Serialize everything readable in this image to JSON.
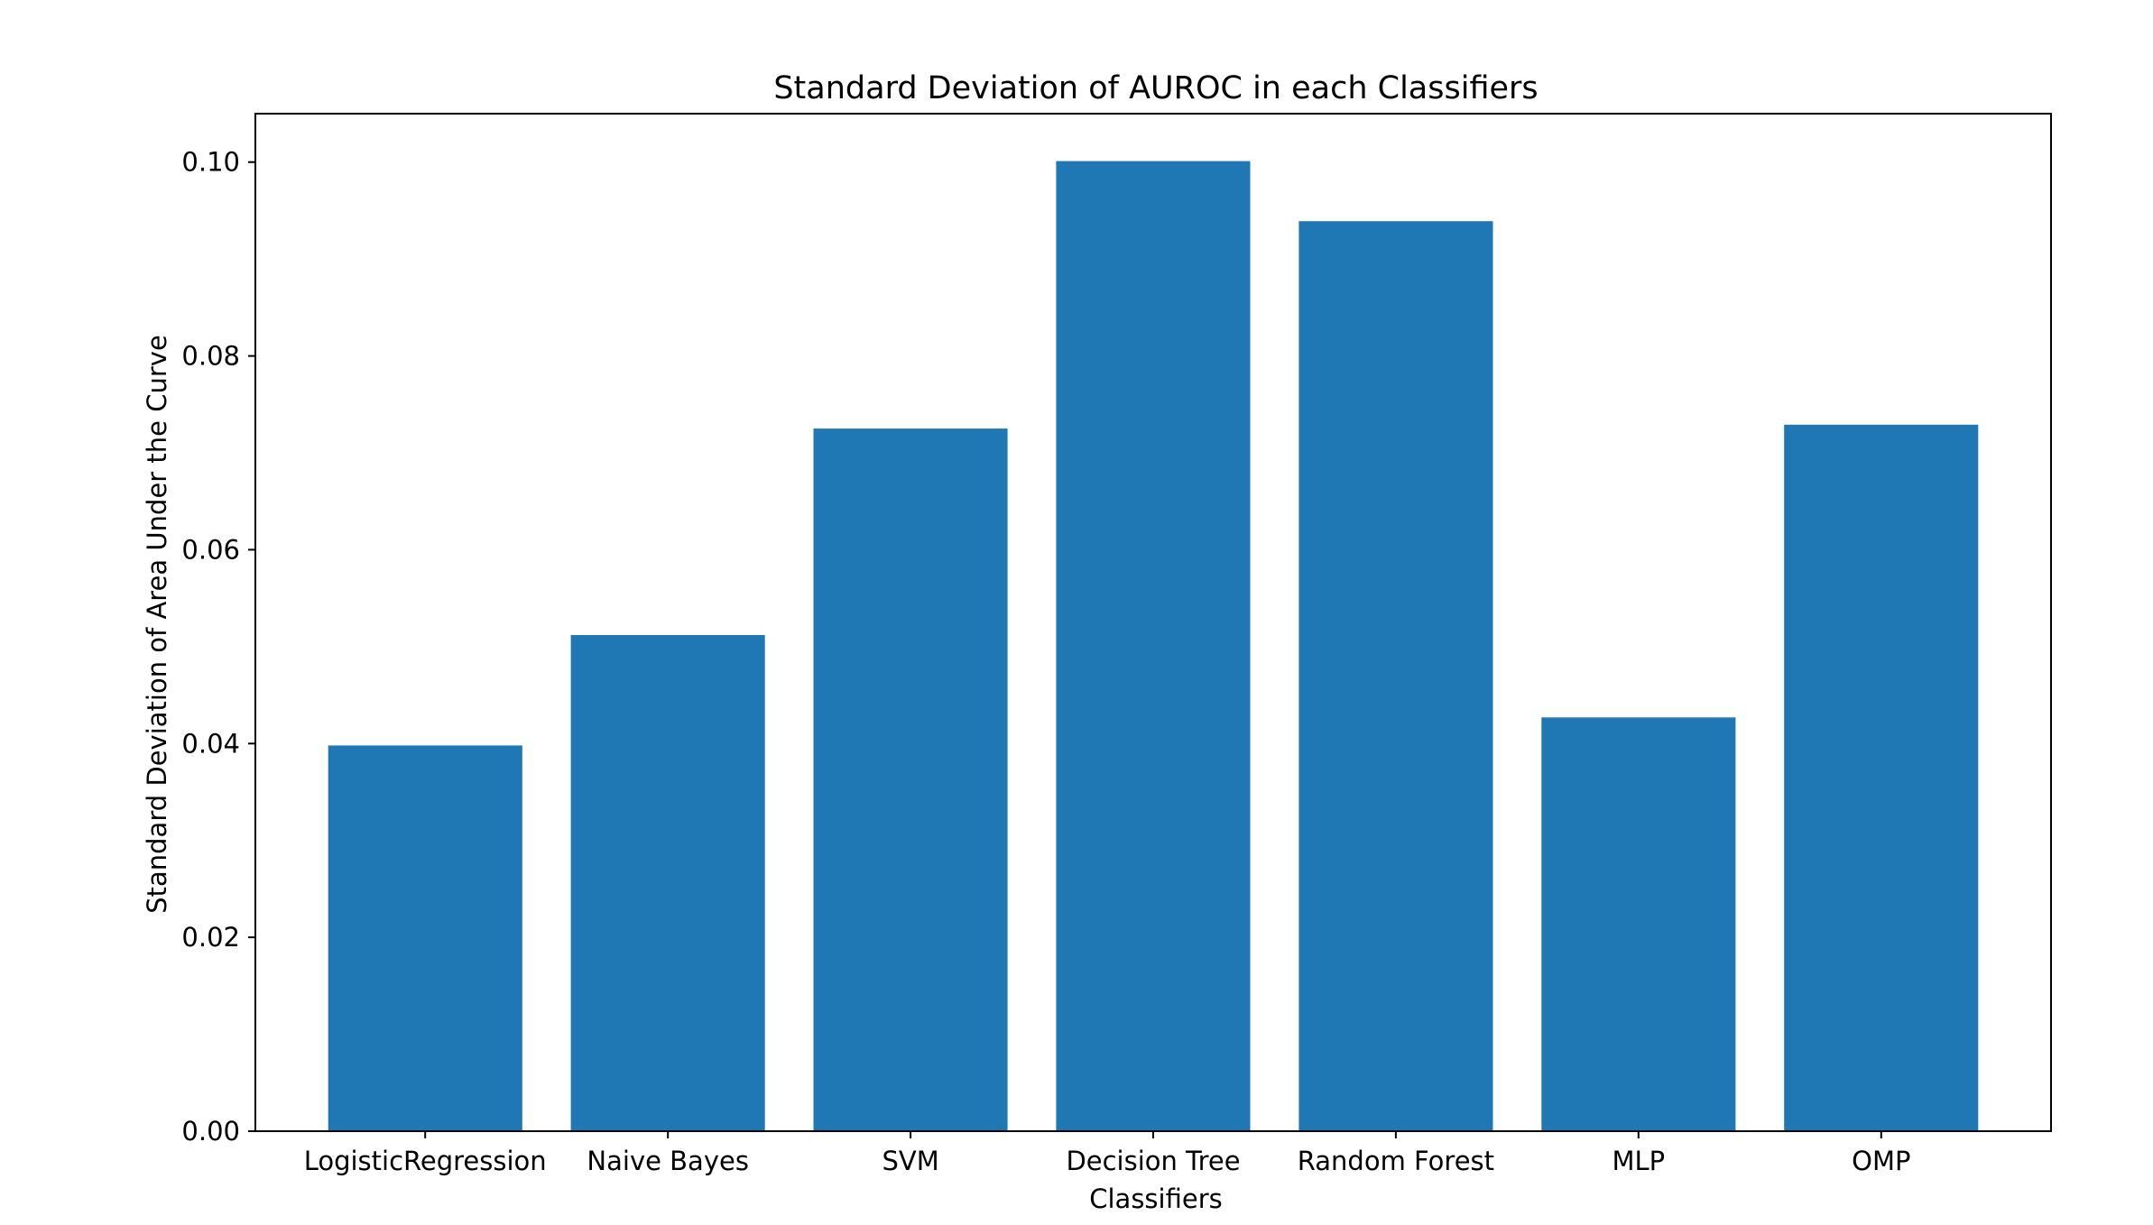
{
  "chart_data": {
    "type": "bar",
    "title": "Standard Deviation of AUROC in each Classifiers",
    "xlabel": "Classifiers",
    "ylabel": "Standard Deviation of Area Under the Curve",
    "categories": [
      "LogisticRegression",
      "Naive Bayes",
      "SVM",
      "Decision Tree",
      "Random Forest",
      "MLP",
      "OMP"
    ],
    "values": [
      0.0398,
      0.0512,
      0.0725,
      0.1001,
      0.0939,
      0.0427,
      0.0729
    ],
    "ylim": [
      0,
      0.105
    ],
    "yticks": [
      "0.00",
      "0.02",
      "0.04",
      "0.06",
      "0.08",
      "0.10"
    ],
    "grid": false,
    "legend": "none",
    "bar_color": "#1f77b4"
  }
}
